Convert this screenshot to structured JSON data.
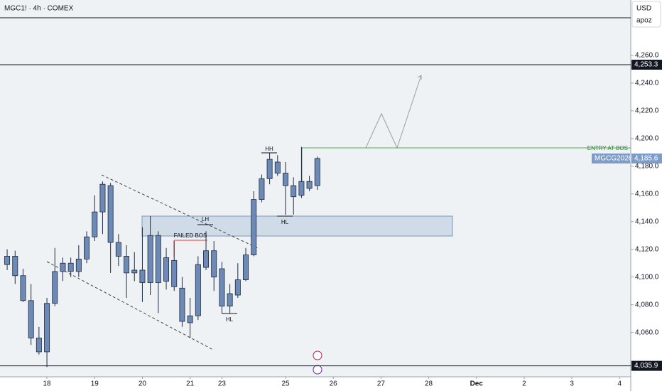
{
  "chart_data": {
    "type": "candlestick",
    "title": "MGC1! · 4h · COMEX",
    "currency": "USD",
    "scale_mode": "apoz",
    "color": "#6d89b5",
    "x": [
      1,
      2,
      3,
      4,
      5,
      6,
      7,
      8,
      9,
      10,
      11,
      12,
      13,
      14,
      15,
      16,
      17,
      18,
      19,
      20,
      21,
      22,
      23,
      24,
      25,
      26,
      27,
      28,
      29,
      30,
      31,
      32,
      33,
      34,
      35,
      36,
      37,
      38,
      39,
      40
    ],
    "open": [
      4109,
      4115,
      4101,
      4083,
      4056,
      4046,
      4081,
      4104,
      4110,
      4104,
      4113,
      4129,
      4147,
      4166,
      4125,
      4115,
      4103,
      4105,
      4096,
      4130,
      4097,
      4112,
      4092,
      4067,
      4072,
      4107,
      4119,
      4106,
      4079,
      4087,
      4098,
      4116,
      4156,
      4171,
      4183,
      4175,
      4158,
      4159,
      4164,
      4166
    ],
    "high": [
      4120,
      4119,
      4106,
      4095,
      4064,
      4085,
      4121,
      4114,
      4114,
      4123,
      4133,
      4159,
      4169,
      4168,
      4131,
      4123,
      4118,
      4136,
      4144,
      4133,
      4121,
      4126,
      4100,
      4085,
      4115,
      4133,
      4126,
      4111,
      4095,
      4110,
      4121,
      4162,
      4174,
      4190,
      4188,
      4183,
      4172,
      4194,
      4173,
      4187
    ],
    "low": [
      4105,
      4095,
      4082,
      4051,
      4044,
      4035,
      4079,
      4097,
      4100,
      4100,
      4110,
      4126,
      4131,
      4103,
      4108,
      4085,
      4097,
      4082,
      4087,
      4074,
      4091,
      4090,
      4064,
      4056,
      4069,
      4105,
      4090,
      4074,
      4074,
      4085,
      4097,
      4115,
      4154,
      4167,
      4173,
      4145,
      4145,
      4157,
      4162,
      4163
    ],
    "close": [
      4115,
      4101,
      4083,
      4056,
      4046,
      4081,
      4104,
      4110,
      4104,
      4113,
      4129,
      4147,
      4167,
      4125,
      4115,
      4103,
      4105,
      4096,
      4130,
      4096,
      4114,
      4093,
      4068,
      4072,
      4109,
      4119,
      4100,
      4079,
      4088,
      4098,
      4116,
      4156,
      4171,
      4185,
      4175,
      4166,
      4166,
      4169,
      4169,
      4185.6
    ],
    "xlim": [
      0.1,
      79.4
    ],
    "xticks": [
      {
        "value": 6,
        "label": "18"
      },
      {
        "value": 12,
        "label": "19"
      },
      {
        "value": 18,
        "label": "20"
      },
      {
        "value": 24,
        "label": "21"
      },
      {
        "value": 28,
        "label": "23"
      },
      {
        "value": 36,
        "label": "25"
      },
      {
        "value": 42,
        "label": "26"
      },
      {
        "value": 48,
        "label": "27"
      },
      {
        "value": 54,
        "label": "28"
      },
      {
        "value": 60,
        "label": "Dec"
      },
      {
        "value": 66,
        "label": "2"
      },
      {
        "value": 72,
        "label": "3"
      },
      {
        "value": 78,
        "label": "4"
      }
    ],
    "ylim": [
      4028,
      4300
    ],
    "yticks": [
      {
        "value": 4060,
        "label": "4,060.0"
      },
      {
        "value": 4080,
        "label": "4,080.0"
      },
      {
        "value": 4100,
        "label": "4,100.0"
      },
      {
        "value": 4120,
        "label": "4,120.0"
      },
      {
        "value": 4140,
        "label": "4,140.0"
      },
      {
        "value": 4160,
        "label": "4,160.0"
      },
      {
        "value": 4180,
        "label": "4,180.0"
      },
      {
        "value": 4200,
        "label": "4,200.0"
      },
      {
        "value": 4220,
        "label": "4,220.0"
      },
      {
        "value": 4240,
        "label": "4,240.0"
      },
      {
        "value": 4260,
        "label": "4,260.0"
      }
    ],
    "price_lines": [
      {
        "value": 4253.3,
        "label": "4,253.3"
      },
      {
        "value": 4035.9,
        "label": "4,035.9"
      }
    ],
    "last_price": {
      "symbol": "MGCG2026",
      "value": 4185.6,
      "label": "4,185.6"
    },
    "annotations": {
      "hh": "HH",
      "lh": "LH",
      "failed_bos": "FAILED BOS",
      "hl_low": "HL",
      "hl_high": "HL",
      "entry": "ENTRY AT BOS"
    }
  }
}
